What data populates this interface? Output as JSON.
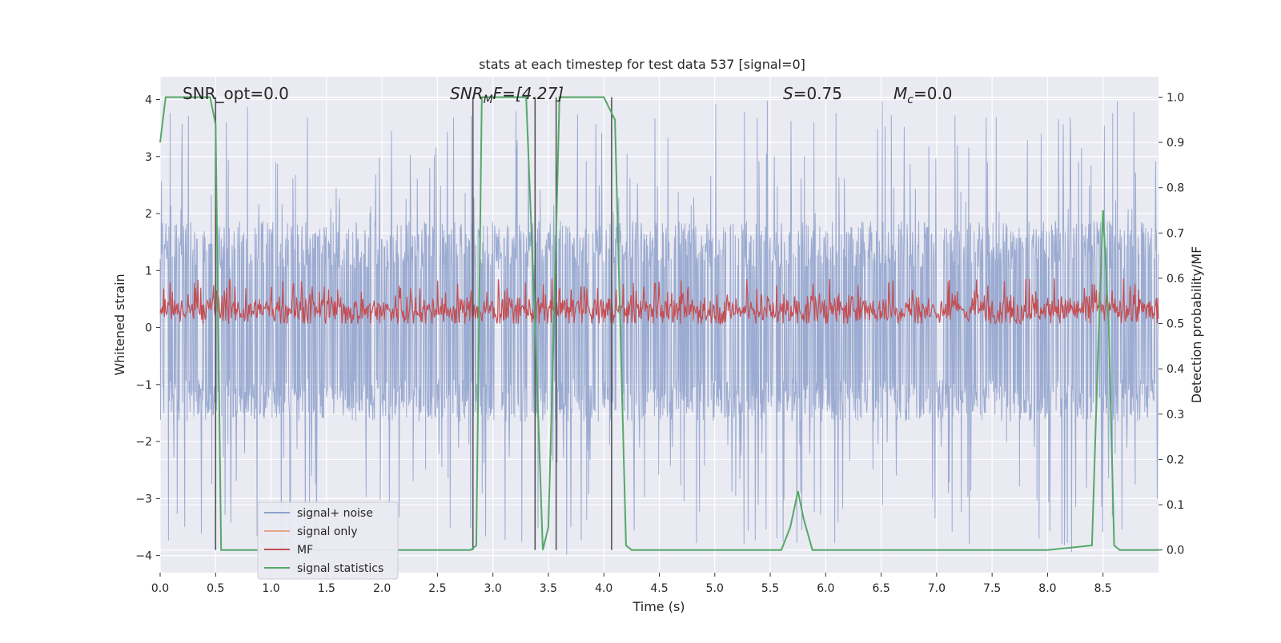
{
  "chart_data": {
    "type": "line",
    "title": "stats at each timestep for test data 537 [signal=0]",
    "xlabel": "Time (s)",
    "ylabel_left": "Whitened strain",
    "ylabel_right": "Detection probability/MF",
    "xlim": [
      0.0,
      9.0
    ],
    "ylim_left": [
      -4.3,
      4.4
    ],
    "ylim_right": [
      -0.05,
      1.045
    ],
    "x_ticks": [
      "0.0",
      "0.5",
      "1.0",
      "1.5",
      "2.0",
      "2.5",
      "3.0",
      "3.5",
      "4.0",
      "4.5",
      "5.0",
      "5.5",
      "6.0",
      "6.5",
      "7.0",
      "7.5",
      "8.0",
      "8.5"
    ],
    "y_ticks_left": [
      "4",
      "3",
      "2",
      "1",
      "0",
      "−1",
      "−2",
      "−3",
      "−4"
    ],
    "y_ticks_right": [
      "1.0",
      "0.9",
      "0.8",
      "0.7",
      "0.6",
      "0.5",
      "0.4",
      "0.3",
      "0.2",
      "0.1",
      "0.0"
    ],
    "grid": true,
    "legend_position": "lower-left",
    "annotations": {
      "snr_opt": "SNR_opt=0.0",
      "snr_mf_prefix": "SNR",
      "snr_mf_sub": "M",
      "snr_mf_suffix": "F=[4.27]",
      "s_sym": "S",
      "s_val": "=0.75",
      "mc_sym": "M",
      "mc_sub": "c",
      "mc_val": "=0.0"
    },
    "series": [
      {
        "name": "signal+ noise",
        "color": "#8da0cb",
        "noise_band_left": [
          -1.5,
          1.7
        ],
        "peak_abs_left": 4.0
      },
      {
        "name": "signal only",
        "color": "#e8a48c",
        "values": []
      },
      {
        "name": "MF",
        "color": "#c44e52",
        "axis": "right",
        "mean": 0.53,
        "range_right": [
          0.5,
          0.6
        ]
      },
      {
        "name": "signal statistics",
        "color": "#55a868",
        "axis": "right",
        "x": [
          0.0,
          0.05,
          0.1,
          0.2,
          0.3,
          0.4,
          0.45,
          0.5,
          0.55,
          0.6,
          1.0,
          2.0,
          2.8,
          2.85,
          2.9,
          3.0,
          3.3,
          3.38,
          3.45,
          3.5,
          3.55,
          3.6,
          3.7,
          4.0,
          4.1,
          4.2,
          4.25,
          4.3,
          5.0,
          5.6,
          5.68,
          5.75,
          5.8,
          5.88,
          6.0,
          7.0,
          8.0,
          8.4,
          8.45,
          8.5,
          8.55,
          8.6,
          8.65,
          9.0
        ],
        "y": [
          0.9,
          1.0,
          1.0,
          1.0,
          1.0,
          1.0,
          1.0,
          0.94,
          0.0,
          0.0,
          0.0,
          0.0,
          0.0,
          0.01,
          1.0,
          1.0,
          1.0,
          0.5,
          0.0,
          0.05,
          0.5,
          1.0,
          1.0,
          1.0,
          0.95,
          0.01,
          0.0,
          0.0,
          0.0,
          0.0,
          0.05,
          0.13,
          0.07,
          0.0,
          0.0,
          0.0,
          0.0,
          0.01,
          0.4,
          0.75,
          0.5,
          0.01,
          0.0,
          0.0
        ]
      }
    ],
    "vertical_markers_x": [
      0.5,
      2.82,
      3.38,
      3.57,
      4.07
    ]
  }
}
